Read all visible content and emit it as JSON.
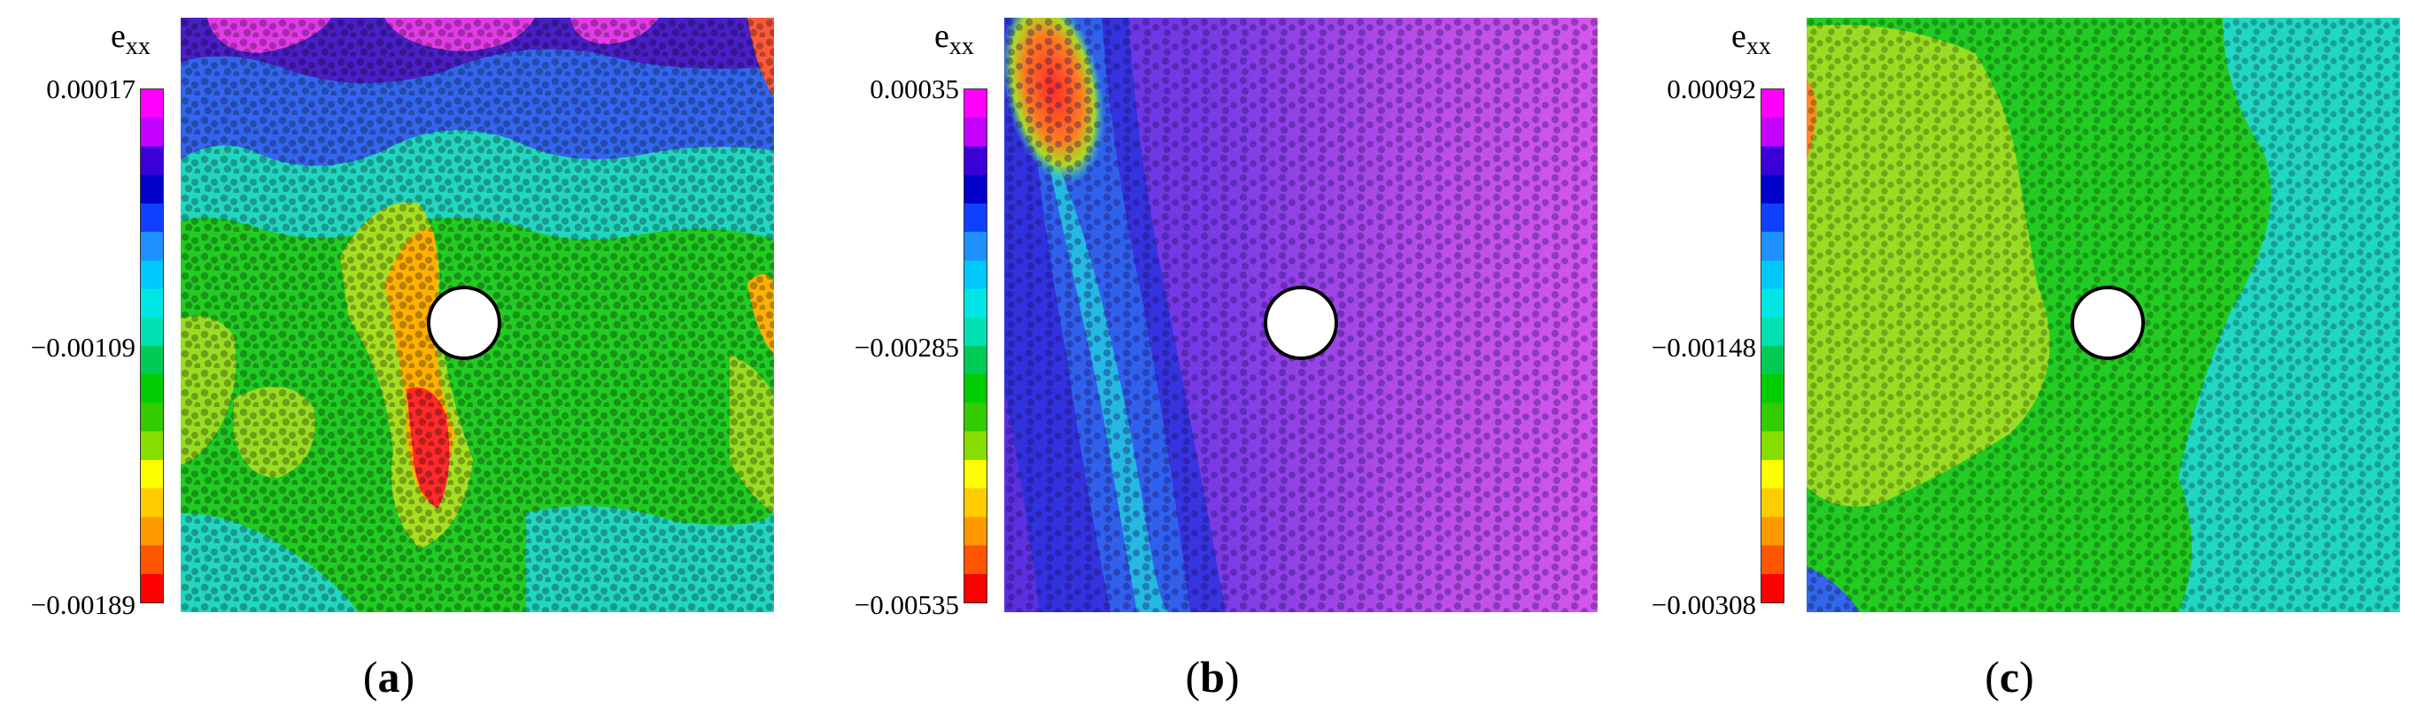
{
  "panels": [
    {
      "symbol_base": "e",
      "symbol_sub": "xx",
      "ticks": [
        "0.00017",
        "−0.00109",
        "−0.00189"
      ],
      "caption_open": "(",
      "caption_letter": "a",
      "caption_close": ")"
    },
    {
      "symbol_base": "e",
      "symbol_sub": "xx",
      "ticks": [
        "0.00035",
        "−0.00285",
        "−0.00535"
      ],
      "caption_open": "(",
      "caption_letter": "b",
      "caption_close": ")"
    },
    {
      "symbol_base": "e",
      "symbol_sub": "xx",
      "ticks": [
        "0.00092",
        "−0.00148",
        "−0.00308"
      ],
      "caption_open": "(",
      "caption_letter": "c",
      "caption_close": ")"
    }
  ],
  "colorbar_colors": [
    "#ff00ff",
    "#c400ff",
    "#3b00d8",
    "#0000c8",
    "#1040ff",
    "#1e90ff",
    "#00c8ff",
    "#00e6e6",
    "#00e0b0",
    "#00cc55",
    "#00cc00",
    "#33cc00",
    "#88dd00",
    "#ffff00",
    "#ffcc00",
    "#ff9900",
    "#ff5500",
    "#ff0000"
  ]
}
